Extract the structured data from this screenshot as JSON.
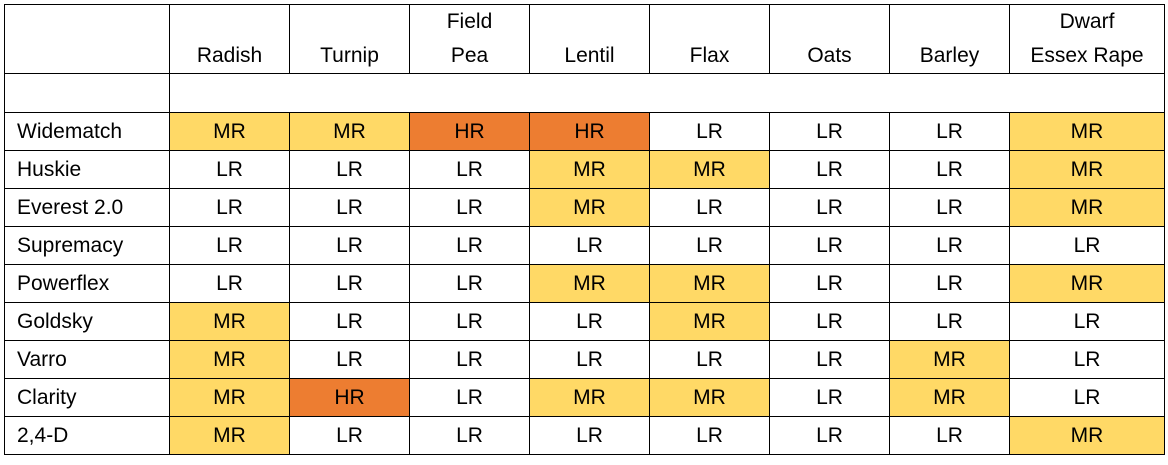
{
  "columns": [
    "Radish",
    "Turnip",
    "Field\nPea",
    "Lentil",
    "Flax",
    "Oats",
    "Barley",
    "Dwarf\nEssex Rape"
  ],
  "rows": [
    {
      "name": "Widematch",
      "values": [
        "MR",
        "MR",
        "HR",
        "HR",
        "LR",
        "LR",
        "LR",
        "MR"
      ]
    },
    {
      "name": "Huskie",
      "values": [
        "LR",
        "LR",
        "LR",
        "MR",
        "MR",
        "LR",
        "LR",
        "MR"
      ]
    },
    {
      "name": "Everest 2.0",
      "values": [
        "LR",
        "LR",
        "LR",
        "MR",
        "LR",
        "LR",
        "LR",
        "MR"
      ]
    },
    {
      "name": "Supremacy",
      "values": [
        "LR",
        "LR",
        "LR",
        "LR",
        "LR",
        "LR",
        "LR",
        "LR"
      ]
    },
    {
      "name": "Powerflex",
      "values": [
        "LR",
        "LR",
        "LR",
        "MR",
        "MR",
        "LR",
        "LR",
        "MR"
      ]
    },
    {
      "name": "Goldsky",
      "values": [
        "MR",
        "LR",
        "LR",
        "LR",
        "MR",
        "LR",
        "LR",
        "LR"
      ]
    },
    {
      "name": "Varro",
      "values": [
        "MR",
        "LR",
        "LR",
        "LR",
        "LR",
        "LR",
        "MR",
        "LR"
      ]
    },
    {
      "name": "Clarity",
      "values": [
        "MR",
        "HR",
        "LR",
        "MR",
        "MR",
        "LR",
        "MR",
        "LR"
      ]
    },
    {
      "name": "2,4-D",
      "values": [
        "MR",
        "LR",
        "LR",
        "LR",
        "LR",
        "LR",
        "LR",
        "MR"
      ]
    }
  ],
  "colors": {
    "MR": "#FFD966",
    "HR": "#ED7D31",
    "LR": "#FFFFFF"
  }
}
